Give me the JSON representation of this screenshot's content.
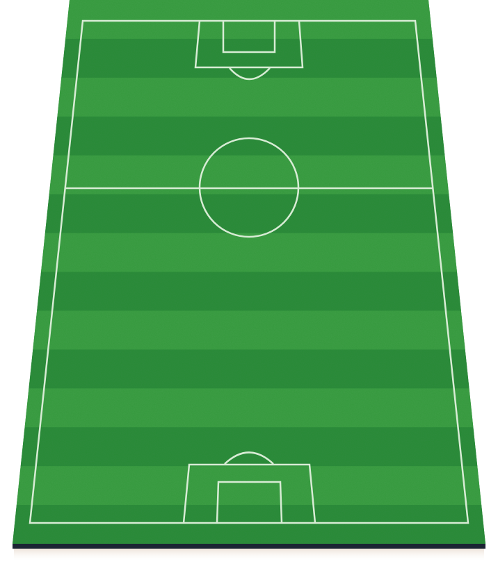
{
  "scene": {
    "name": "soccer-field-perspective",
    "colors": {
      "background": "#ffffff",
      "grass_light": "#3f9d48",
      "grass_dark": "#2f8a3f",
      "line": "#d8ecd5",
      "base_edge": "#1b2433",
      "shadow": "#f1e7dc"
    },
    "stripe_count": 14
  }
}
